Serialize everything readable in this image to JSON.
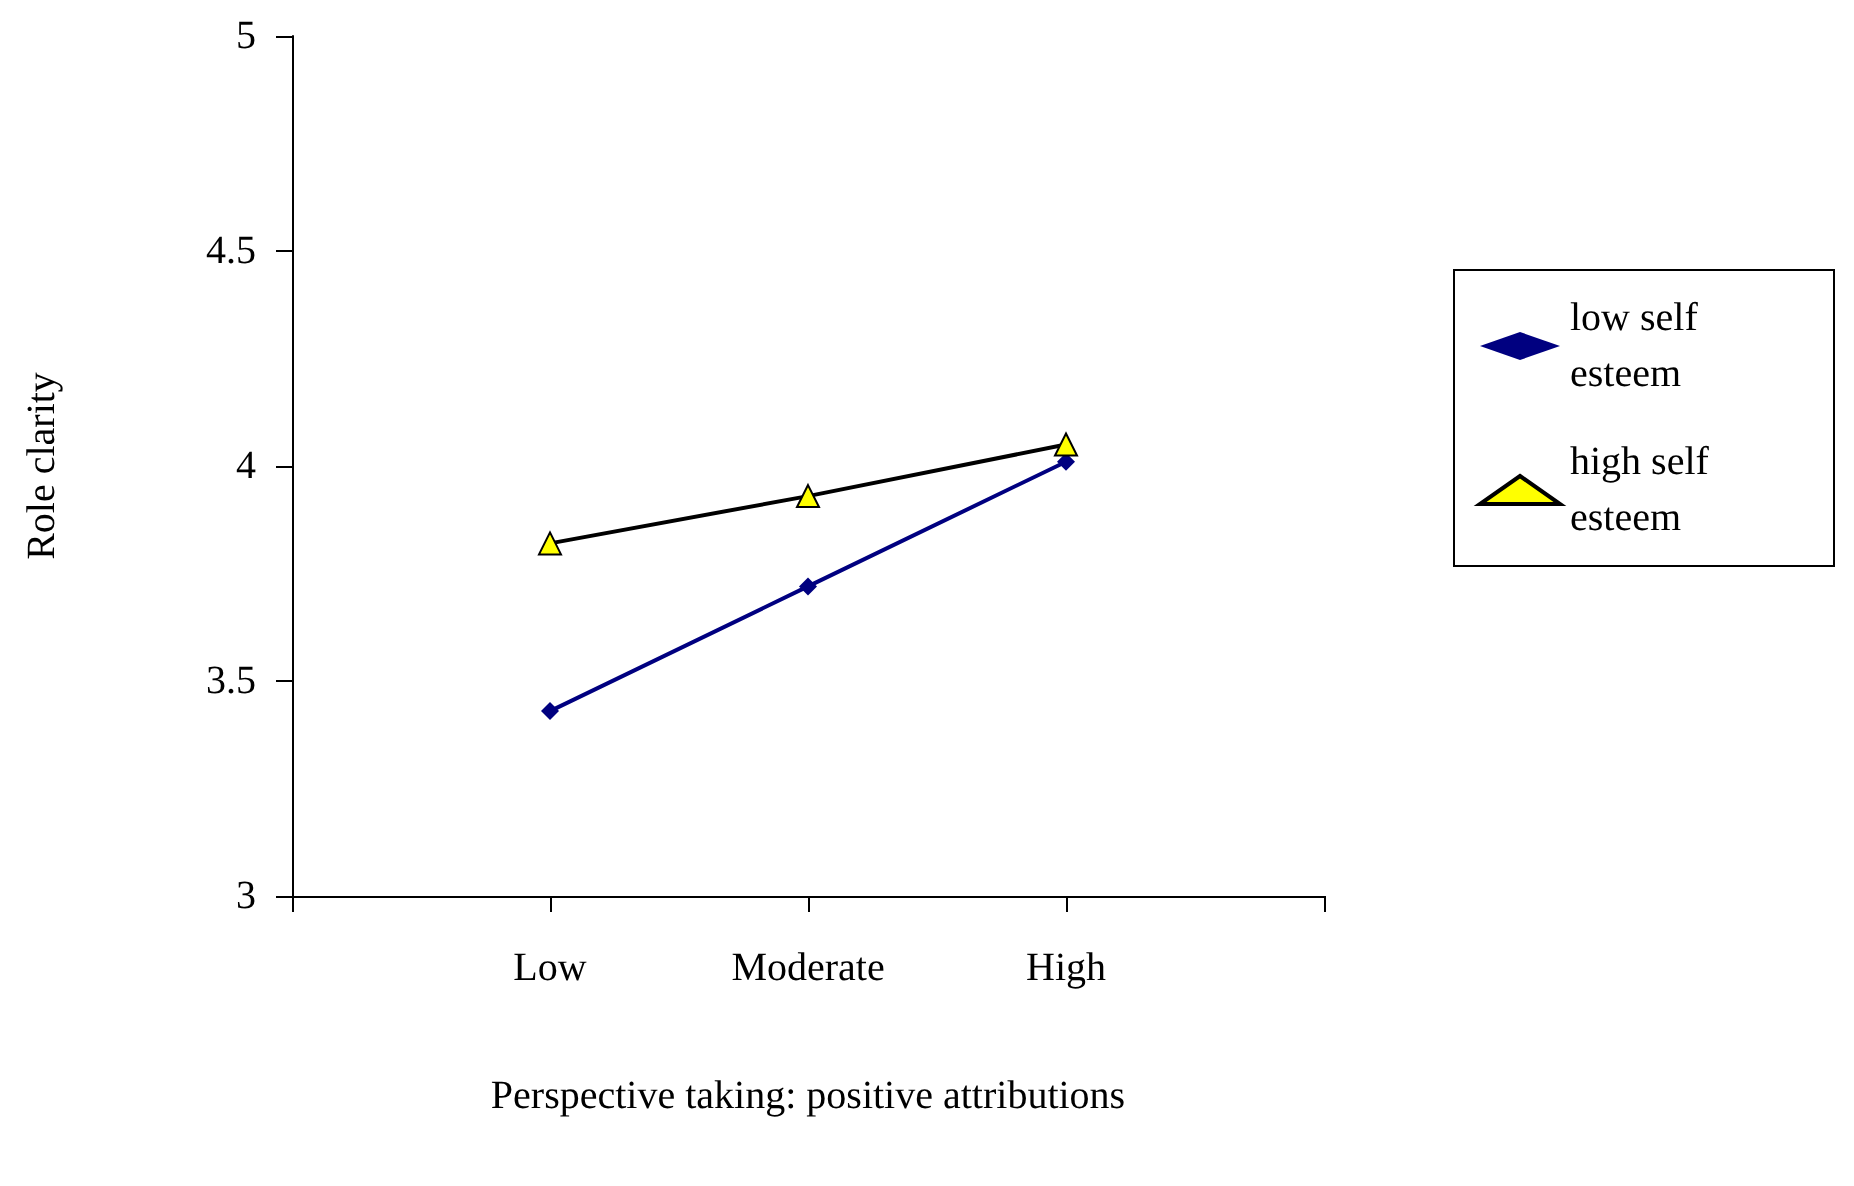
{
  "chart_data": {
    "type": "line",
    "xlabel": "Perspective taking: positive attributions",
    "ylabel": "Role clarity",
    "categories": [
      null,
      "Low",
      "Moderate",
      "High",
      null
    ],
    "series": [
      {
        "name": "low self esteem",
        "color": "#000080",
        "marker": "diamond",
        "values": [
          null,
          3.43,
          3.72,
          4.01,
          null
        ]
      },
      {
        "name": "high self esteem",
        "color": "#000000",
        "marker": "triangle",
        "values": [
          null,
          3.82,
          3.93,
          4.05,
          null
        ]
      }
    ],
    "ylim": [
      3,
      5
    ],
    "yticks": [
      3,
      3.5,
      4,
      4.5,
      5
    ],
    "grid": false,
    "legend": "right"
  }
}
